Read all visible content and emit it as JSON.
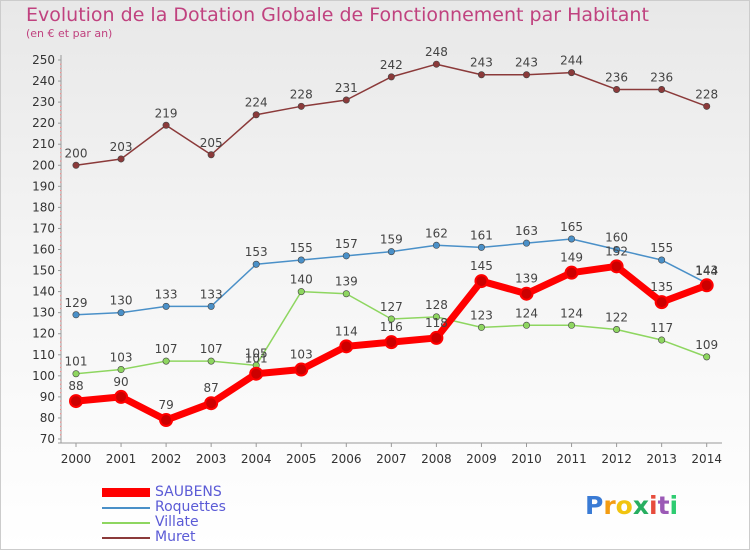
{
  "chart_data": {
    "type": "line",
    "title": "Evolution de la Dotation Globale de Fonctionnement par Habitant",
    "subtitle": "(en € et par an)",
    "x": [
      "2000",
      "2001",
      "2002",
      "2003",
      "2004",
      "2005",
      "2006",
      "2007",
      "2008",
      "2009",
      "2010",
      "2011",
      "2012",
      "2013",
      "2014"
    ],
    "ylim": [
      70,
      250
    ],
    "yticks": [
      70,
      80,
      90,
      100,
      110,
      120,
      130,
      140,
      150,
      160,
      170,
      180,
      190,
      200,
      210,
      220,
      230,
      240,
      250
    ],
    "grid": false,
    "legend_position": "bottom-left",
    "series": [
      {
        "name": "SAUBENS",
        "color": "#ff0000",
        "values": [
          88,
          90,
          79,
          87,
          101,
          103,
          114,
          116,
          118,
          145,
          139,
          149,
          152,
          135,
          143
        ]
      },
      {
        "name": "Roquettes",
        "color": "#4a90c8",
        "values": [
          129,
          130,
          133,
          133,
          153,
          155,
          157,
          159,
          162,
          161,
          163,
          165,
          160,
          155,
          144
        ]
      },
      {
        "name": "Villate",
        "color": "#8ed660",
        "values": [
          101,
          103,
          107,
          107,
          105,
          140,
          139,
          127,
          128,
          123,
          124,
          124,
          122,
          117,
          109
        ]
      },
      {
        "name": "Muret",
        "color": "#8b3a3a",
        "values": [
          200,
          203,
          219,
          205,
          224,
          228,
          231,
          242,
          248,
          243,
          243,
          244,
          236,
          236,
          228
        ]
      }
    ]
  },
  "logo": {
    "letters": [
      "P",
      "r",
      "o",
      "x",
      "i",
      "t",
      "i"
    ],
    "colors": [
      "#3a7bd5",
      "#f39c12",
      "#f1c40f",
      "#27ae60",
      "#e74c3c",
      "#9b59b6",
      "#2ecc71"
    ]
  }
}
